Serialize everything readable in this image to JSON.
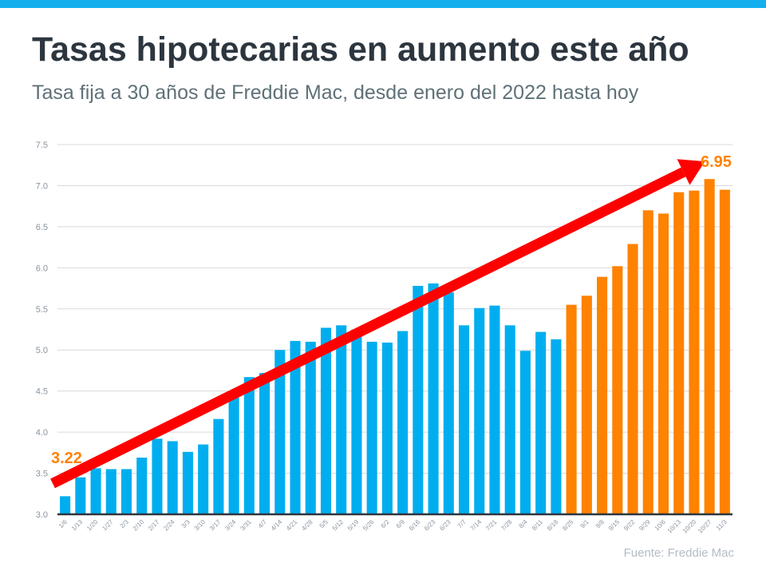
{
  "header": {
    "title": "Tasas hipotecarias en aumento este año",
    "subtitle": "Tasa fija a 30 años de Freddie Mac, desde enero del 2022 hasta hoy"
  },
  "source": "Fuente:  Freddie Mac",
  "colors": {
    "top_bar": "#15aeef",
    "blue_bars": "#00aeef",
    "orange_bars": "#ff8200",
    "trend_arrow": "#ff0000"
  },
  "chart_data": {
    "type": "bar",
    "title": "",
    "xlabel": "",
    "ylabel": "",
    "ylim": [
      3.0,
      7.5
    ],
    "yticks": [
      "3.0",
      "3.5",
      "4.0",
      "4.5",
      "5.0",
      "5.5",
      "6.0",
      "6.5",
      "7.0",
      "7.5"
    ],
    "grid": true,
    "categories": [
      "1/6",
      "1/13",
      "1/20",
      "1/27",
      "2/3",
      "2/10",
      "2/17",
      "2/24",
      "3/3",
      "3/10",
      "3/17",
      "3/24",
      "3/31",
      "4/7",
      "4/14",
      "4/21",
      "4/28",
      "5/5",
      "5/12",
      "5/19",
      "5/26",
      "6/2",
      "6/9",
      "6/16",
      "6/23",
      "6/23",
      "7/7",
      "7/14",
      "7/21",
      "7/28",
      "8/4",
      "8/11",
      "8/18",
      "8/25",
      "9/1",
      "9/8",
      "9/15",
      "9/22",
      "9/29",
      "10/6",
      "10/13",
      "10/20",
      "10/27",
      "11/3"
    ],
    "values": [
      3.22,
      3.45,
      3.56,
      3.55,
      3.55,
      3.69,
      3.92,
      3.89,
      3.76,
      3.85,
      4.16,
      4.42,
      4.67,
      4.72,
      5.0,
      5.11,
      5.1,
      5.27,
      5.3,
      5.25,
      5.1,
      5.09,
      5.23,
      5.78,
      5.81,
      5.7,
      5.3,
      5.51,
      5.54,
      5.3,
      4.99,
      5.22,
      5.13,
      5.55,
      5.66,
      5.89,
      6.02,
      6.29,
      6.7,
      6.66,
      6.92,
      6.94,
      7.08,
      6.95
    ],
    "highlight_from_category": "8/25",
    "annotations": [
      {
        "text": "3.22",
        "category": "1/6"
      },
      {
        "text": "6.95",
        "category": "11/3"
      }
    ],
    "trend_arrow": {
      "from_value": 3.22,
      "to_value": 7.1
    }
  }
}
